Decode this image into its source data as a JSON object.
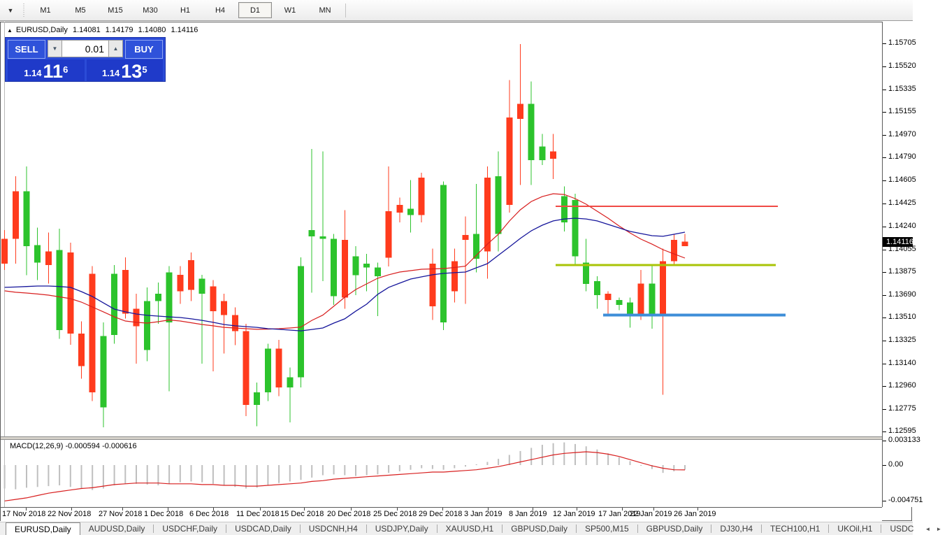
{
  "toolbar": {
    "dropdown_icon": "chevron-down",
    "timeframes": [
      "M1",
      "M5",
      "M15",
      "M30",
      "H1",
      "H4",
      "D1",
      "W1",
      "MN"
    ],
    "active_timeframe": "D1"
  },
  "chart_header": {
    "symbol_title": "EURUSD,Daily",
    "open": "1.14081",
    "high": "1.14179",
    "low": "1.14080",
    "close": "1.14116"
  },
  "trade_panel": {
    "sell_label": "SELL",
    "buy_label": "BUY",
    "volume": "0.01",
    "sell_price": {
      "prefix": "1.14",
      "big": "11",
      "sup": "6"
    },
    "buy_price": {
      "prefix": "1.14",
      "big": "13",
      "sup": "5"
    }
  },
  "indicator_label": "MACD(12,26,9) -0.000594 -0.000616",
  "price_axis": {
    "ticks": [
      "1.15705",
      "1.15520",
      "1.15335",
      "1.15155",
      "1.14970",
      "1.14790",
      "1.14605",
      "1.14425",
      "1.14240",
      "1.14055",
      "1.13875",
      "1.13690",
      "1.13510",
      "1.13325",
      "1.13140",
      "1.12960",
      "1.12775",
      "1.12595"
    ],
    "current": "1.14116"
  },
  "macd_axis": {
    "top": "0.003133",
    "zero": "0.00",
    "bottom": "-0.004751"
  },
  "time_axis": [
    {
      "label": "17 Nov 2018",
      "x": 2
    },
    {
      "label": "22 Nov 2018",
      "x": 67
    },
    {
      "label": "27 Nov 2018",
      "x": 140
    },
    {
      "label": "1 Dec 2018",
      "x": 205
    },
    {
      "label": "6 Dec 2018",
      "x": 270
    },
    {
      "label": "11 Dec 2018",
      "x": 337
    },
    {
      "label": "15 Dec 2018",
      "x": 400
    },
    {
      "label": "20 Dec 2018",
      "x": 467
    },
    {
      "label": "25 Dec 2018",
      "x": 533
    },
    {
      "label": "29 Dec 2018",
      "x": 598
    },
    {
      "label": "3 Jan 2019",
      "x": 663
    },
    {
      "label": "8 Jan 2019",
      "x": 727
    },
    {
      "label": "12 Jan 2019",
      "x": 790
    },
    {
      "label": "17 Jan 2019",
      "x": 855
    },
    {
      "label": "22 Jan 2019",
      "x": 900
    },
    {
      "label": "26 Jan 2019",
      "x": 963
    }
  ],
  "tabs": {
    "items": [
      "EURUSD,Daily",
      "AUDUSD,Daily",
      "USDCHF,Daily",
      "USDCAD,Daily",
      "USDCNH,H4",
      "USDJPY,Daily",
      "XAUUSD,H1",
      "GBPUSD,Daily",
      "SP500,M15",
      "GBPUSD,Daily",
      "DJ30,H4",
      "TECH100,H1",
      "UKOil,H1",
      "USDC"
    ],
    "active_index": 0,
    "scroll_left": "◄",
    "scroll_right": "►"
  },
  "chart_data": {
    "type": "candlestick",
    "symbol": "EURUSD",
    "timeframe": "D1",
    "ylim": [
      1.12595,
      1.15705
    ],
    "colors": {
      "bull": "#2cc32c",
      "bear": "#ff3b1d",
      "ma_slow_blue": "#15159b",
      "ma_fast_red": "#d81f1f",
      "macd_hist": "#bfbfbf",
      "macd_signal": "#d81f1f",
      "level_red": "#f04a45",
      "level_yellow": "#a9c407",
      "level_blue": "#3e8ed8"
    },
    "candles": [
      [
        1.1414,
        1.1421,
        1.1389,
        1.1394
      ],
      [
        1.1452,
        1.1464,
        1.1394,
        1.1414
      ],
      [
        1.1408,
        1.1472,
        1.1385,
        1.1452
      ],
      [
        1.1395,
        1.1423,
        1.1381,
        1.1409
      ],
      [
        1.1404,
        1.1419,
        1.1378,
        1.1393
      ],
      [
        1.1341,
        1.1422,
        1.1334,
        1.1405
      ],
      [
        1.1403,
        1.1411,
        1.1329,
        1.1338
      ],
      [
        1.1338,
        1.1348,
        1.1302,
        1.1312
      ],
      [
        1.1386,
        1.1392,
        1.1284,
        1.1291
      ],
      [
        1.1279,
        1.1347,
        1.1263,
        1.1336
      ],
      [
        1.1337,
        1.1393,
        1.133,
        1.1386
      ],
      [
        1.1389,
        1.1399,
        1.135,
        1.1354
      ],
      [
        1.1358,
        1.137,
        1.1314,
        1.1344
      ],
      [
        1.1325,
        1.1375,
        1.1316,
        1.1364
      ],
      [
        1.1364,
        1.1379,
        1.1346,
        1.137
      ],
      [
        1.1347,
        1.1392,
        1.1292,
        1.1387
      ],
      [
        1.1385,
        1.1392,
        1.1362,
        1.1372
      ],
      [
        1.1397,
        1.1403,
        1.1364,
        1.1373
      ],
      [
        1.137,
        1.1385,
        1.1314,
        1.1382
      ],
      [
        1.1376,
        1.1381,
        1.1308,
        1.1356
      ],
      [
        1.1364,
        1.137,
        1.1322,
        1.1353
      ],
      [
        1.1353,
        1.1359,
        1.1329,
        1.134
      ],
      [
        1.134,
        1.1346,
        1.1272,
        1.1281
      ],
      [
        1.1281,
        1.1299,
        1.1264,
        1.1291
      ],
      [
        1.1291,
        1.133,
        1.1284,
        1.1326
      ],
      [
        1.1326,
        1.1333,
        1.1288,
        1.1295
      ],
      [
        1.1295,
        1.1311,
        1.1267,
        1.1303
      ],
      [
        1.1303,
        1.1399,
        1.1295,
        1.1392
      ],
      [
        1.1416,
        1.1486,
        1.1371,
        1.1421
      ],
      [
        1.1414,
        1.1484,
        1.138,
        1.1416
      ],
      [
        1.1368,
        1.1418,
        1.1361,
        1.1414
      ],
      [
        1.1413,
        1.1437,
        1.1358,
        1.1367
      ],
      [
        1.1385,
        1.1408,
        1.1369,
        1.14
      ],
      [
        1.1391,
        1.1402,
        1.1372,
        1.1394
      ],
      [
        1.1384,
        1.1395,
        1.1352,
        1.1391
      ],
      [
        1.1436,
        1.1472,
        1.1392,
        1.1399
      ],
      [
        1.1441,
        1.1447,
        1.1427,
        1.1435
      ],
      [
        1.1433,
        1.1461,
        1.1419,
        1.1438
      ],
      [
        1.1463,
        1.1467,
        1.1427,
        1.1433
      ],
      [
        1.1394,
        1.1406,
        1.1349,
        1.136
      ],
      [
        1.1347,
        1.146,
        1.1341,
        1.1457
      ],
      [
        1.1396,
        1.1406,
        1.1363,
        1.1372
      ],
      [
        1.1417,
        1.1432,
        1.1362,
        1.1413
      ],
      [
        1.1398,
        1.1458,
        1.1387,
        1.1418
      ],
      [
        1.1463,
        1.1472,
        1.1382,
        1.1404
      ],
      [
        1.1418,
        1.1484,
        1.1404,
        1.1464
      ],
      [
        1.1511,
        1.1541,
        1.1435,
        1.1441
      ],
      [
        1.1522,
        1.157,
        1.1457,
        1.151
      ],
      [
        1.1477,
        1.154,
        1.1457,
        1.1522
      ],
      [
        1.1477,
        1.1498,
        1.1473,
        1.1488
      ],
      [
        1.1484,
        1.1498,
        1.1462,
        1.1478
      ],
      [
        1.1427,
        1.1456,
        1.142,
        1.1448
      ],
      [
        1.14,
        1.145,
        1.1393,
        1.1445
      ],
      [
        1.1378,
        1.1414,
        1.1372,
        1.1395
      ],
      [
        1.1369,
        1.1384,
        1.1358,
        1.138
      ],
      [
        1.137,
        1.1372,
        1.1353,
        1.1365
      ],
      [
        1.1361,
        1.1367,
        1.1357,
        1.1365
      ],
      [
        1.1353,
        1.1367,
        1.1343,
        1.1363
      ],
      [
        1.1378,
        1.1389,
        1.1349,
        1.1354
      ],
      [
        1.1352,
        1.1393,
        1.1342,
        1.1378
      ],
      [
        1.1396,
        1.1406,
        1.1289,
        1.1353
      ],
      [
        1.1413,
        1.1418,
        1.1393,
        1.1396
      ],
      [
        1.14081,
        1.14179,
        1.1408,
        1.14116
      ]
    ],
    "force_bear_index": 62,
    "ma_slow_blue": [
      1.13751,
      1.13754,
      1.13758,
      1.13762,
      1.13762,
      1.13758,
      1.13751,
      1.13717,
      1.13678,
      1.13627,
      1.13577,
      1.13555,
      1.13538,
      1.13527,
      1.13521,
      1.13515,
      1.1351,
      1.13499,
      1.13487,
      1.13471,
      1.13454,
      1.13443,
      1.13437,
      1.13431,
      1.1342,
      1.13415,
      1.13409,
      1.13403,
      1.13414,
      1.13426,
      1.13465,
      1.13499,
      1.13561,
      1.13617,
      1.13695,
      1.13751,
      1.13785,
      1.13818,
      1.13835,
      1.13852,
      1.13863,
      1.13869,
      1.13874,
      1.13908,
      1.13941,
      1.14008,
      1.14075,
      1.14143,
      1.14204,
      1.14249,
      1.14283,
      1.14299,
      1.14305,
      1.14299,
      1.14283,
      1.14255,
      1.14227,
      1.14199,
      1.14182,
      1.14165,
      1.1416,
      1.14176,
      1.14193
    ],
    "ma_fast_red": [
      1.13723,
      1.13712,
      1.13706,
      1.13698,
      1.13689,
      1.13675,
      1.13661,
      1.13633,
      1.13594,
      1.13555,
      1.13515,
      1.13482,
      1.13471,
      1.13465,
      1.13476,
      1.1349,
      1.13482,
      1.13468,
      1.13454,
      1.13443,
      1.13431,
      1.13426,
      1.1342,
      1.13415,
      1.13417,
      1.1342,
      1.13426,
      1.13433,
      1.13487,
      1.13529,
      1.136,
      1.13672,
      1.13734,
      1.13779,
      1.13824,
      1.13852,
      1.13874,
      1.13885,
      1.13896,
      1.13899,
      1.13902,
      1.1391,
      1.13921,
      1.14008,
      1.14097,
      1.14176,
      1.14282,
      1.14372,
      1.14439,
      1.14478,
      1.14501,
      1.14495,
      1.14462,
      1.14417,
      1.14361,
      1.14305,
      1.14243,
      1.14187,
      1.14137,
      1.14097,
      1.14053,
      1.14019,
      1.13986
    ],
    "levels": [
      {
        "name": "resistance-red-line",
        "price": 1.144,
        "x1": 795,
        "x2": 1113,
        "thickness": 2,
        "color_key": "level_red"
      },
      {
        "name": "pivot-yellow-line",
        "price": 1.1393,
        "x1": 795,
        "x2": 1110,
        "thickness": 3,
        "color_key": "level_yellow"
      },
      {
        "name": "support-blue-line",
        "price": 1.1353,
        "x1": 863,
        "x2": 1124,
        "thickness": 4,
        "color_key": "level_blue"
      }
    ],
    "macd": {
      "params": "12,26,9",
      "value": -0.000594,
      "signal_value": -0.000616,
      "ylim": [
        -0.004751,
        0.003133
      ],
      "histogram": [
        -0.003,
        -0.0031,
        -0.0029,
        -0.0028,
        -0.0027,
        -0.0026,
        -0.0028,
        -0.003,
        -0.0032,
        -0.003,
        -0.0026,
        -0.0024,
        -0.0024,
        -0.0025,
        -0.0026,
        -0.0024,
        -0.0022,
        -0.0021,
        -0.0022,
        -0.0024,
        -0.0026,
        -0.0028,
        -0.003,
        -0.0029,
        -0.0026,
        -0.0023,
        -0.0021,
        -0.0019,
        -0.0016,
        -0.0013,
        -0.0012,
        -0.0013,
        -0.0014,
        -0.0013,
        -0.0012,
        -0.001,
        -0.0008,
        -0.0006,
        -0.0004,
        -0.0005,
        -0.0006,
        -0.0004,
        -0.0002,
        0.0001,
        0.0004,
        0.0008,
        0.0013,
        0.0018,
        0.0022,
        0.0026,
        0.0028,
        0.0029,
        0.0027,
        0.0024,
        0.002,
        0.0015,
        0.001,
        0.0005,
        0.0,
        -0.0005,
        -0.001,
        -0.0008,
        -0.0006
      ],
      "signal": [
        -0.0046,
        -0.0044,
        -0.0042,
        -0.0039,
        -0.0036,
        -0.0034,
        -0.0032,
        -0.003,
        -0.0029,
        -0.0027,
        -0.0025,
        -0.0024,
        -0.0023,
        -0.0023,
        -0.0023,
        -0.0024,
        -0.0024,
        -0.0024,
        -0.0025,
        -0.0025,
        -0.0026,
        -0.0026,
        -0.0027,
        -0.0027,
        -0.0026,
        -0.0025,
        -0.0024,
        -0.0023,
        -0.0021,
        -0.002,
        -0.0018,
        -0.0017,
        -0.0016,
        -0.0015,
        -0.0014,
        -0.0013,
        -0.0012,
        -0.0011,
        -0.001,
        -0.0009,
        -0.0009,
        -0.0008,
        -0.0007,
        -0.0006,
        -0.0004,
        -0.0002,
        0.0001,
        0.0004,
        0.0007,
        0.001,
        0.0013,
        0.0015,
        0.0016,
        0.0017,
        0.0016,
        0.0014,
        0.0011,
        0.0007,
        0.0003,
        -0.0001,
        -0.0004,
        -0.0006,
        -0.00062
      ]
    }
  }
}
